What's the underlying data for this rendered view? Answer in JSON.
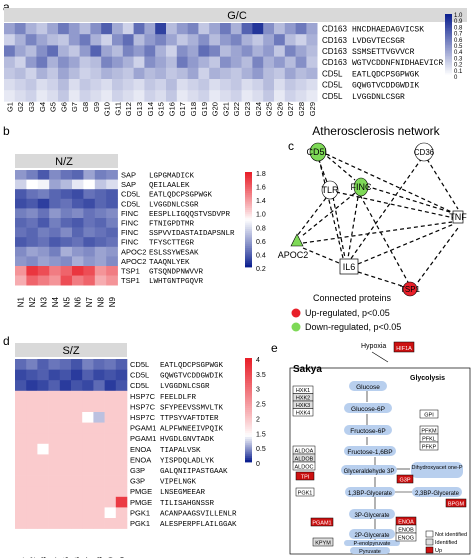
{
  "colors": {
    "heat_low": "#0b1f8f",
    "heat_mid": "#ffffff",
    "heat_high": "#e8202a",
    "up": "#e8202a",
    "down": "#7ed957",
    "node_blue": "#b8cfee"
  },
  "panel_a": {
    "letter": "a",
    "title": "G/C",
    "row_labels": [
      [
        "CD163",
        "HNCDHAEDAGVICSK"
      ],
      [
        "CD163",
        "LVDGVTECSGR"
      ],
      [
        "CD163",
        "SSMSETTVGVVCR"
      ],
      [
        "CD163",
        "WGTVCDDNFNIDHAEVICR"
      ],
      [
        "CD5L",
        "EATLQDCPSGPWGK"
      ],
      [
        "CD5L",
        "GQWGTVCDDGWDIK"
      ],
      [
        "CD5L",
        "LVGGDNLCSGR"
      ]
    ],
    "col_labels": [
      "G1",
      "G2",
      "G3",
      "G4",
      "G5",
      "G6",
      "G7",
      "G8",
      "G9",
      "G10",
      "G11",
      "G12",
      "G13",
      "G14",
      "G15",
      "G16",
      "G17",
      "G18",
      "G19",
      "G20",
      "G21",
      "G22",
      "G23",
      "G24",
      "G25",
      "G26",
      "G27",
      "G28",
      "G29"
    ],
    "col_labels_shown": [
      "G1",
      "G2",
      "G3",
      "G4",
      "G5",
      "G6",
      "G7",
      "G8",
      "G9",
      "G10",
      "G11",
      "G12",
      "G13",
      "G14",
      "G15",
      "G16",
      "G17",
      "G18",
      "G19",
      "G20",
      "G21",
      "G22",
      "G23",
      "G24",
      "G25",
      "G26",
      "G27",
      "G28",
      "G29"
    ],
    "legend_ticks": [
      "1.0",
      "0.9",
      "0.8",
      "0.7",
      "0.6",
      "0.5",
      "0.4",
      "0.3",
      "0.2",
      "0.1",
      "0"
    ],
    "legend_min": 0,
    "legend_max": 1,
    "values": [
      [
        0.42,
        0.55,
        0.35,
        0.25,
        0.4,
        0.6,
        0.45,
        0.3,
        0.5,
        0.72,
        0.38,
        0.2,
        0.65,
        0.4,
        0.85,
        0.3,
        0.45,
        0.55,
        0.25,
        0.4,
        0.6,
        0.35,
        0.7,
        0.9,
        0.5,
        0.3,
        0.45,
        0.6,
        0.4
      ],
      [
        0.2,
        0.35,
        0.55,
        0.4,
        0.3,
        0.25,
        0.45,
        0.6,
        0.35,
        0.2,
        0.5,
        0.65,
        0.3,
        0.45,
        0.55,
        0.4,
        0.25,
        0.35,
        0.5,
        0.3,
        0.45,
        0.55,
        0.35,
        0.25,
        0.4,
        0.6,
        0.3,
        0.2,
        0.35
      ],
      [
        0.6,
        0.4,
        0.3,
        0.5,
        0.65,
        0.35,
        0.25,
        0.45,
        0.7,
        0.4,
        0.3,
        0.55,
        0.45,
        0.6,
        0.35,
        0.2,
        0.5,
        0.4,
        0.65,
        0.55,
        0.3,
        0.4,
        0.5,
        0.35,
        0.45,
        0.25,
        0.55,
        0.4,
        0.3
      ],
      [
        0.3,
        0.2,
        0.45,
        0.6,
        0.35,
        0.5,
        0.4,
        0.25,
        0.3,
        0.55,
        0.45,
        0.35,
        0.2,
        0.5,
        0.4,
        0.3,
        0.6,
        0.45,
        0.35,
        0.25,
        0.5,
        0.4,
        0.3,
        0.55,
        0.35,
        0.45,
        0.3,
        0.5,
        0.25
      ],
      [
        0.25,
        0.3,
        0.2,
        0.35,
        0.25,
        0.4,
        0.3,
        0.2,
        0.25,
        0.35,
        0.3,
        0.25,
        0.4,
        0.3,
        0.35,
        0.25,
        0.3,
        0.4,
        0.2,
        0.35,
        0.3,
        0.25,
        0.35,
        0.45,
        0.3,
        0.25,
        0.4,
        0.3,
        0.35
      ],
      [
        0.15,
        0.2,
        0.25,
        0.15,
        0.2,
        0.3,
        0.15,
        0.25,
        0.2,
        0.15,
        0.25,
        0.2,
        0.15,
        0.25,
        0.2,
        0.3,
        0.15,
        0.2,
        0.25,
        0.15,
        0.2,
        0.25,
        0.15,
        0.2,
        0.3,
        0.15,
        0.25,
        0.2,
        0.15
      ],
      [
        0.1,
        0.15,
        0.2,
        0.1,
        0.15,
        0.25,
        0.1,
        0.2,
        0.15,
        0.1,
        0.2,
        0.15,
        0.1,
        0.2,
        0.15,
        0.25,
        0.1,
        0.15,
        0.2,
        0.1,
        0.15,
        0.2,
        0.1,
        0.15,
        0.25,
        0.1,
        0.2,
        0.15,
        0.1
      ]
    ]
  },
  "panel_b": {
    "letter": "b",
    "title": "N/Z",
    "row_labels": [
      [
        "SAP",
        "LGPGMADICK"
      ],
      [
        "SAP",
        "QEILAALEK"
      ],
      [
        "CD5L",
        "EATLQDCPSGPWGK"
      ],
      [
        "CD5L",
        "LVGGDNLCSGR"
      ],
      [
        "FINC",
        "EESPLLIGQQSTVSDVPR"
      ],
      [
        "FINC",
        "FTNIGPDTMR"
      ],
      [
        "FINC",
        "SSPVVIDASTAIDAPSNLR"
      ],
      [
        "FINC",
        "TFYSCTTEGR"
      ],
      [
        "APOC2",
        "ESLSSYWESAK"
      ],
      [
        "APOC2",
        "TAAQNLYEK"
      ],
      [
        "TSP1",
        "GTSQNDPNWVVR"
      ],
      [
        "TSP1",
        "LWHTGNTPGQVR"
      ]
    ],
    "col_labels": [
      "N1",
      "N2",
      "N3",
      "N4",
      "N5",
      "N6",
      "N7",
      "N8",
      "N9"
    ],
    "legend_ticks": [
      "1.8",
      "1.6",
      "1.4",
      "1.0",
      "0.8",
      "0.6",
      "0.4",
      "0.2"
    ],
    "legend_min": 0.1,
    "legend_max": 1.9,
    "values": [
      [
        0.55,
        0.45,
        0.3,
        0.5,
        0.4,
        0.35,
        0.6,
        0.45,
        0.5
      ],
      [
        0.8,
        1.0,
        0.95,
        0.6,
        0.7,
        0.9,
        1.0,
        0.75,
        0.85
      ],
      [
        0.3,
        0.4,
        0.45,
        0.35,
        0.3,
        0.25,
        0.4,
        0.35,
        0.3
      ],
      [
        0.25,
        0.3,
        0.2,
        0.35,
        0.4,
        0.3,
        0.25,
        0.35,
        0.3
      ],
      [
        0.45,
        0.5,
        0.4,
        0.55,
        0.45,
        0.5,
        0.4,
        0.45,
        0.5
      ],
      [
        0.35,
        0.4,
        0.3,
        0.45,
        0.35,
        0.3,
        0.4,
        0.35,
        0.45
      ],
      [
        0.4,
        0.35,
        0.45,
        0.4,
        0.5,
        0.35,
        0.45,
        0.4,
        0.35
      ],
      [
        0.3,
        0.35,
        0.4,
        0.3,
        0.35,
        0.4,
        0.3,
        0.35,
        0.4
      ],
      [
        0.5,
        0.6,
        0.55,
        0.45,
        0.65,
        0.55,
        0.5,
        0.6,
        0.55
      ],
      [
        0.55,
        0.5,
        0.6,
        0.55,
        0.5,
        0.65,
        0.55,
        0.6,
        0.5
      ],
      [
        1.4,
        1.8,
        1.7,
        1.5,
        1.6,
        1.8,
        1.7,
        1.4,
        1.5
      ],
      [
        1.3,
        1.6,
        1.5,
        1.4,
        1.7,
        1.5,
        1.6,
        1.3,
        1.4
      ]
    ]
  },
  "panel_c": {
    "letter": "c",
    "title": "Atherosclerosis network",
    "nodes": [
      {
        "id": "CD5L",
        "status": "down"
      },
      {
        "id": "CD36",
        "status": "none"
      },
      {
        "id": "TLR",
        "status": "none"
      },
      {
        "id": "FINC",
        "status": "down"
      },
      {
        "id": "TNF",
        "status": "none"
      },
      {
        "id": "APOC2",
        "status": "down"
      },
      {
        "id": "IL6",
        "status": "none"
      },
      {
        "id": "TSP1",
        "status": "up"
      }
    ],
    "legend_title": "Connected proteins",
    "legend_up": "Up-regulated, p<0.05",
    "legend_down": "Down-regulated, p<0.05"
  },
  "panel_d": {
    "letter": "d",
    "title": "S/Z",
    "row_labels": [
      [
        "CD5L",
        "EATLQDCPSGPWGK"
      ],
      [
        "CD5L",
        "GQWGTVCDDGWDIK"
      ],
      [
        "CD5L",
        "LVGGDNLCSGR"
      ],
      [
        "HSP7C",
        "FEELDLFR"
      ],
      [
        "HSP7C",
        "SFYPEEVSSMVLTK"
      ],
      [
        "HSP7C",
        "TTPSYVAFTDTER"
      ],
      [
        "PGAM1",
        "ALPFWNEEIVPQIK"
      ],
      [
        "PGAM1",
        "HVGDLGNVTADK"
      ],
      [
        "ENOA",
        "TIAPALVSK"
      ],
      [
        "ENOA",
        "YISPDQLADLYK"
      ],
      [
        "G3P",
        "GALQNIIPASTGAAK"
      ],
      [
        "G3P",
        "VIPELNGK"
      ],
      [
        "PMGE",
        "LNSEGMEEAR"
      ],
      [
        "PMGE",
        "TILISAHGNSSR"
      ],
      [
        "PGK1",
        "ACANPAAGSVILLENLR"
      ],
      [
        "PGK1",
        "ALESPERPFLAILGGAK"
      ]
    ],
    "col_labels": [
      "S1",
      "S2",
      "S3",
      "S4",
      "S5",
      "S6",
      "S7",
      "S8",
      "S9",
      "S10"
    ],
    "legend_ticks": [
      "4",
      "3.5",
      "3",
      "2.5",
      "2",
      "1.5",
      "0.5",
      "0"
    ],
    "legend_min": 0,
    "legend_max": 4,
    "values": [
      [
        0.3,
        0.4,
        0.25,
        0.35,
        0.3,
        0.2,
        0.4,
        0.3,
        0.35,
        0.25
      ],
      [
        0.15,
        0.2,
        0.25,
        0.15,
        0.2,
        0.1,
        0.25,
        0.15,
        0.2,
        0.15
      ],
      [
        0.2,
        0.1,
        0.15,
        0.25,
        0.1,
        0.2,
        0.15,
        0.3,
        0.1,
        0.2
      ],
      [
        1.6,
        1.6,
        1.6,
        1.6,
        1.6,
        1.6,
        1.6,
        1.6,
        1.6,
        1.6
      ],
      [
        1.6,
        1.6,
        1.6,
        1.6,
        1.6,
        1.6,
        1.6,
        1.6,
        1.6,
        1.6
      ],
      [
        1.6,
        1.6,
        1.6,
        1.6,
        1.6,
        1.6,
        1.0,
        0.7,
        1.6,
        1.6
      ],
      [
        1.6,
        1.6,
        1.6,
        1.6,
        1.6,
        1.6,
        1.6,
        1.6,
        1.6,
        1.6
      ],
      [
        1.6,
        1.6,
        1.6,
        1.6,
        1.6,
        1.6,
        1.6,
        1.6,
        1.6,
        1.6
      ],
      [
        1.6,
        1.6,
        1.0,
        1.6,
        1.6,
        1.6,
        1.6,
        1.6,
        1.6,
        1.6
      ],
      [
        1.6,
        1.6,
        1.6,
        1.6,
        1.6,
        1.6,
        1.6,
        1.6,
        1.6,
        1.6
      ],
      [
        1.6,
        1.6,
        1.6,
        1.6,
        1.6,
        1.6,
        1.6,
        1.6,
        1.6,
        1.6
      ],
      [
        1.6,
        1.6,
        1.6,
        1.6,
        1.6,
        1.6,
        1.6,
        1.6,
        1.6,
        1.6
      ],
      [
        1.6,
        1.6,
        1.6,
        1.6,
        1.6,
        1.6,
        1.6,
        1.6,
        1.6,
        1.6
      ],
      [
        1.6,
        1.6,
        1.6,
        1.6,
        1.6,
        1.6,
        1.6,
        1.6,
        1.6,
        3.6
      ],
      [
        1.6,
        1.6,
        1.6,
        1.6,
        1.6,
        1.6,
        1.6,
        1.6,
        1.0,
        1.6
      ],
      [
        1.6,
        1.6,
        1.6,
        1.6,
        1.6,
        1.6,
        1.6,
        1.6,
        1.6,
        1.6
      ]
    ]
  },
  "panel_e": {
    "letter": "e",
    "title": "Sakya",
    "hypoxia": "Hypoxia",
    "glycolysis": "Glycolysis",
    "top_gene": "HIF1A",
    "metabolites": [
      "Glucose",
      "Glucose-6P",
      "Fructose-6P",
      "Fructose-1,6BP",
      "Glyceraldehyde 3P",
      "Dihydroxyacet one-P",
      "1,3BP-Glycerate",
      "2,3BP-Glycerate",
      "3P-Glycerate",
      "2P-Glycerate",
      "P-enolpyruvate",
      "Pyruvate"
    ],
    "hk_genes": [
      "HXK1",
      "HXK2",
      "HXK3",
      "HXK4"
    ],
    "gpi": "GPI",
    "pfk_genes": [
      "PFKM",
      "PFKL",
      "PFKP"
    ],
    "aldo_genes": [
      "ALDOA",
      "ALDOB",
      "ALDOC"
    ],
    "tpi": "TPI",
    "g3p": "G3P",
    "pgk": "PGK1",
    "bpgm": "BPGM",
    "pgam": "PGAM1",
    "eno_genes": [
      "ENOA",
      "ENOB",
      "ENOG"
    ],
    "pkm": "KPYM",
    "legend": [
      "Not identified",
      "Identified",
      "Up"
    ]
  }
}
